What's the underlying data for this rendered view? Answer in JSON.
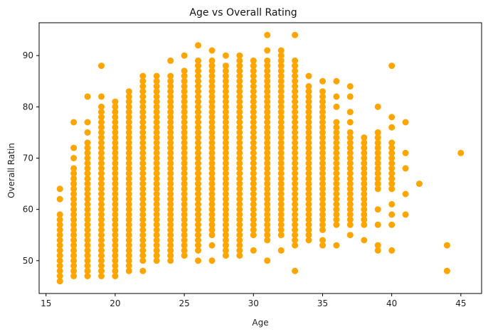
{
  "chart_data": {
    "type": "scatter",
    "title": "Age vs Overall Rating",
    "xlabel": "Age",
    "ylabel": "Overall Ratin",
    "xlim": [
      14.5,
      46.5
    ],
    "ylim": [
      43.6,
      96.4
    ],
    "xticks": [
      15,
      20,
      25,
      30,
      35,
      40,
      45
    ],
    "yticks": [
      50,
      60,
      70,
      80,
      90
    ],
    "grid": false,
    "marker_color": "#ffa500",
    "series": [
      {
        "columns": [
          {
            "x": 16,
            "y_min": 46,
            "y_max": 59,
            "outliers": [
              62,
              64
            ]
          },
          {
            "x": 17,
            "y_min": 47,
            "y_max": 68,
            "outliers": [
              70,
              72,
              77
            ]
          },
          {
            "x": 18,
            "y_min": 47,
            "y_max": 73,
            "outliers": [
              75,
              77,
              82
            ]
          },
          {
            "x": 19,
            "y_min": 47,
            "y_max": 80,
            "outliers": [
              82,
              88
            ]
          },
          {
            "x": 20,
            "y_min": 47,
            "y_max": 81,
            "outliers": []
          },
          {
            "x": 21,
            "y_min": 48,
            "y_max": 83,
            "outliers": []
          },
          {
            "x": 22,
            "y_min": 50,
            "y_max": 86,
            "outliers": [
              48
            ]
          },
          {
            "x": 23,
            "y_min": 50,
            "y_max": 86,
            "outliers": []
          },
          {
            "x": 24,
            "y_min": 50,
            "y_max": 86,
            "outliers": [
              89
            ]
          },
          {
            "x": 25,
            "y_min": 51,
            "y_max": 87,
            "outliers": [
              90
            ]
          },
          {
            "x": 26,
            "y_min": 52,
            "y_max": 89,
            "outliers": [
              50,
              92
            ]
          },
          {
            "x": 27,
            "y_min": 55,
            "y_max": 89,
            "outliers": [
              50,
              53,
              91
            ]
          },
          {
            "x": 28,
            "y_min": 53,
            "y_max": 88,
            "outliers": [
              51,
              52,
              90
            ]
          },
          {
            "x": 29,
            "y_min": 51,
            "y_max": 90,
            "outliers": []
          },
          {
            "x": 30,
            "y_min": 55,
            "y_max": 88,
            "outliers": [
              52,
              89
            ]
          },
          {
            "x": 31,
            "y_min": 54,
            "y_max": 89,
            "outliers": [
              50,
              91,
              94
            ]
          },
          {
            "x": 32,
            "y_min": 55,
            "y_max": 89,
            "outliers": [
              52,
              90,
              91
            ]
          },
          {
            "x": 33,
            "y_min": 53,
            "y_max": 89,
            "outliers": [
              48,
              94
            ]
          },
          {
            "x": 34,
            "y_min": 54,
            "y_max": 84,
            "outliers": [
              86
            ]
          },
          {
            "x": 35,
            "y_min": 56,
            "y_max": 83,
            "outliers": [
              53,
              54,
              85
            ]
          },
          {
            "x": 36,
            "y_min": 57,
            "y_max": 77,
            "outliers": [
              53,
              80,
              82,
              85
            ]
          },
          {
            "x": 37,
            "y_min": 57,
            "y_max": 75,
            "outliers": [
              55,
              77,
              79,
              82,
              84
            ]
          },
          {
            "x": 38,
            "y_min": 59,
            "y_max": 74,
            "outliers": [
              54,
              57,
              58
            ]
          },
          {
            "x": 39,
            "y_min": 64,
            "y_max": 75,
            "outliers": [
              52,
              53,
              57,
              60,
              80
            ]
          },
          {
            "x": 40,
            "y_min": 64,
            "y_max": 73,
            "outliers": [
              52,
              57,
              59,
              61,
              66,
              76,
              78,
              88
            ]
          },
          {
            "x": 41,
            "y_min": 71,
            "y_max": 71,
            "outliers": [
              59,
              63,
              68,
              77
            ]
          },
          {
            "x": 42,
            "y_min": 65,
            "y_max": 65,
            "outliers": []
          },
          {
            "x": 44,
            "y_min": 48,
            "y_max": 48,
            "outliers": [
              53
            ]
          },
          {
            "x": 45,
            "y_min": 71,
            "y_max": 71,
            "outliers": []
          }
        ]
      }
    ]
  }
}
